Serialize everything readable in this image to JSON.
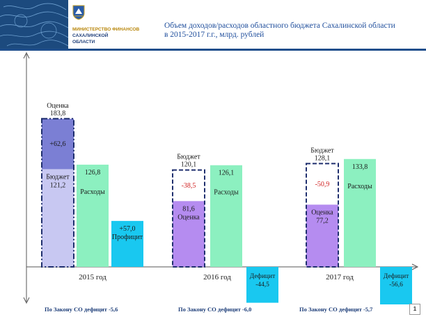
{
  "header": {
    "ministry_line1": "МИНИСТЕРСТВО ФИНАНСОВ",
    "ministry_line2": "САХАЛИНСКОЙ",
    "ministry_line3": "ОБЛАСТИ",
    "title_line1": "Объем доходов/расходов областного бюджета Сахалинской области",
    "title_line2": "в 2015-2017 г.г., млрд. рублей"
  },
  "chart_data": {
    "type": "bar",
    "categories": [
      "2015 год",
      "2016 год",
      "2017 год"
    ],
    "ylim": [
      -60,
      200
    ],
    "groups": [
      {
        "year": "2015 год",
        "revenue_base": {
          "value": 121.2,
          "label": "Бюджет\n121,2"
        },
        "revenue_increment": {
          "value": 62.6,
          "label": "+62,6"
        },
        "revenue_total": {
          "value": 183.8,
          "label": "Оценка\n183,8"
        },
        "expenses": {
          "value": 126.8,
          "value_label": "126,8",
          "name": "Расходы"
        },
        "balance": {
          "value": 57.0,
          "label": "+57,0\nПрофицит"
        },
        "law_note": "По Закону СО дефицит  -5,6"
      },
      {
        "year": "2016 год",
        "revenue_budget": {
          "value": 120.1,
          "label": "Бюджет\n120,1"
        },
        "revenue_estimate": {
          "value": 81.6,
          "label": "81,6\nОценка"
        },
        "revenue_gap": {
          "value": -38.5,
          "label": "-38,5"
        },
        "expenses": {
          "value": 126.1,
          "value_label": "126,1",
          "name": "Расходы"
        },
        "balance": {
          "value": -44.5,
          "label": "Дефицит\n-44,5"
        },
        "law_note": "По Закону СО дефицит  -6,0"
      },
      {
        "year": "2017 год",
        "revenue_budget": {
          "value": 128.1,
          "label": "Бюджет\n128,1"
        },
        "revenue_estimate": {
          "value": 77.2,
          "label": "Оценка\n77,2"
        },
        "revenue_gap": {
          "value": -50.9,
          "label": "-50,9"
        },
        "expenses": {
          "value": 133.8,
          "value_label": "133,8",
          "name": "Расходы"
        },
        "balance": {
          "value": -56.6,
          "label": "Дефицит\n-56,6"
        },
        "law_note": "По Закону СО дефицит  -5,7"
      }
    ]
  },
  "colors": {
    "header_blue": "#1f4e8c",
    "revenue_increment": "#7b7fd4",
    "revenue_base": "#c8c8f2",
    "revenue_estimate": "#b58cf0",
    "expenses": "#8cf0c0",
    "balance": "#19c8f0",
    "negative_text": "#d02020"
  },
  "page": {
    "number": "1"
  }
}
